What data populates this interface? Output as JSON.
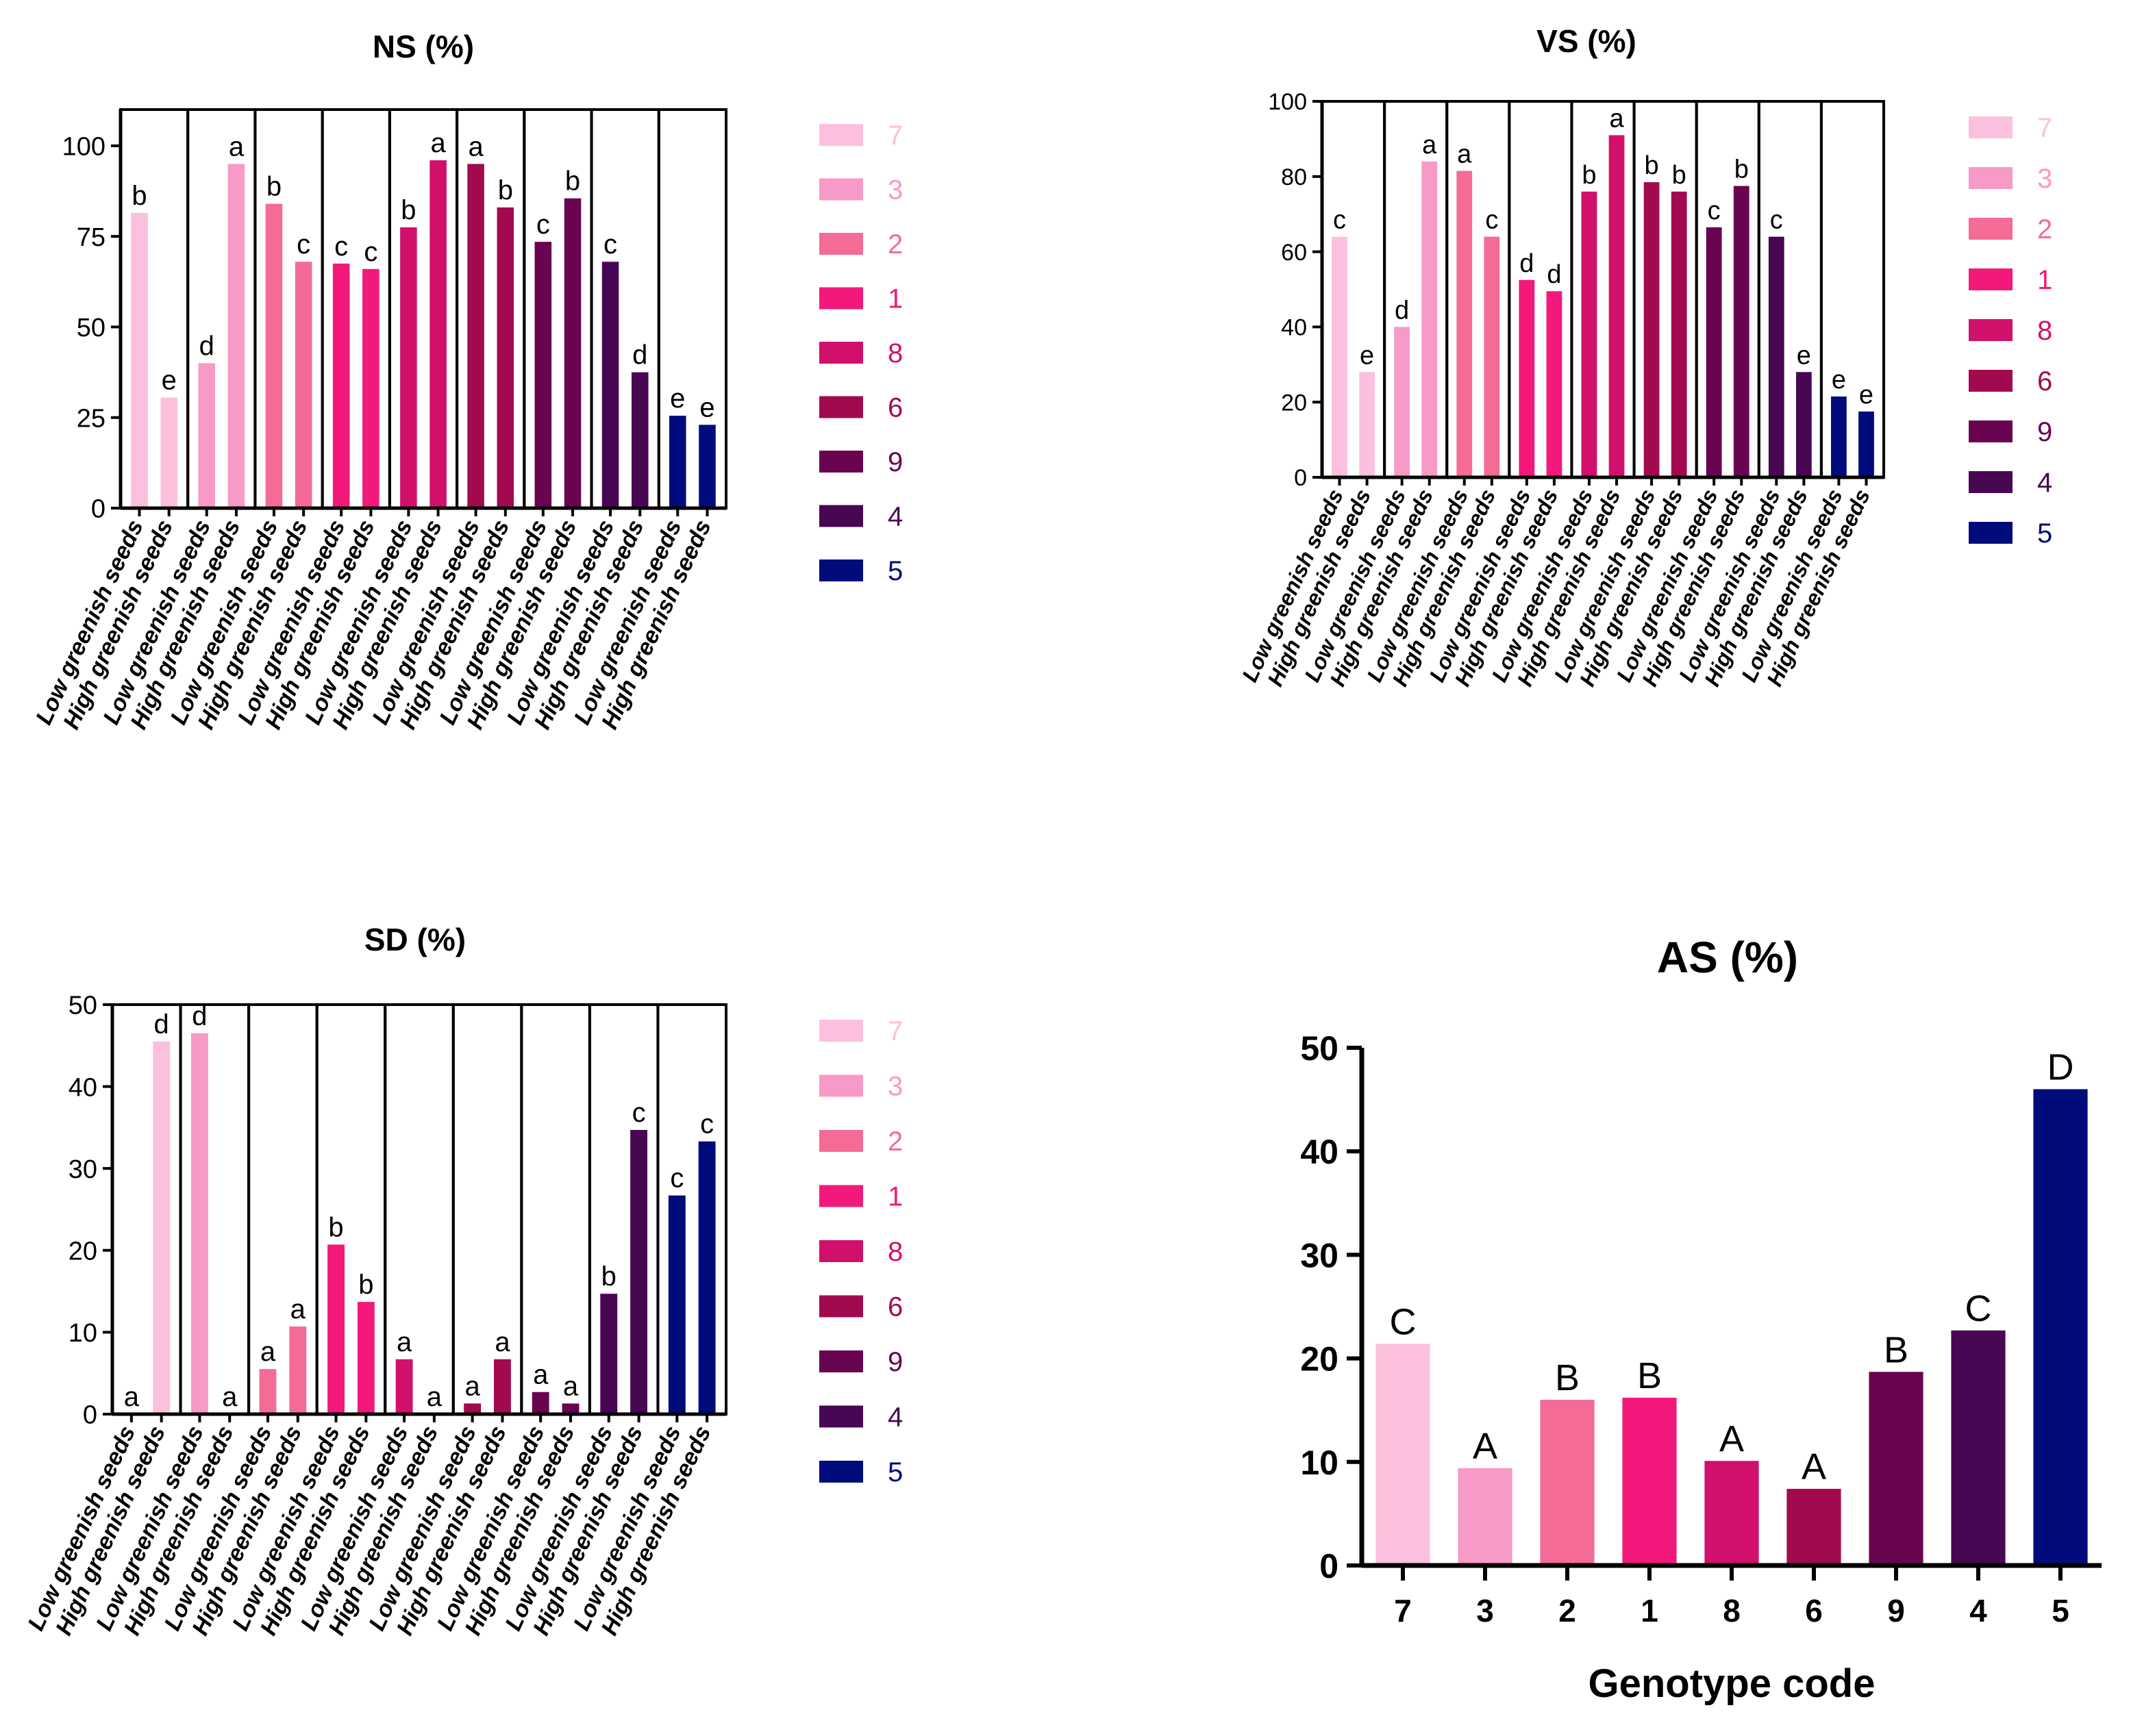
{
  "legend_genotypes": [
    "7",
    "3",
    "2",
    "1",
    "8",
    "6",
    "9",
    "4",
    "5"
  ],
  "palette": {
    "7": "#fbc0dd",
    "3": "#f79ac7",
    "2": "#f46b96",
    "1": "#f2197b",
    "8": "#d1106b",
    "6": "#a20a50",
    "9": "#690550",
    "4": "#480752",
    "5": "#010c7c"
  },
  "category_labels": [
    "Low greenish seeds",
    "High greenish seeds"
  ],
  "chart_data": [
    {
      "id": "ns",
      "type": "bar",
      "title": "NS (%)",
      "ylim": [
        0,
        110
      ],
      "yticks": [
        0,
        25,
        50,
        75,
        100
      ],
      "groups": [
        {
          "genotype": "7",
          "values": [
            81.5,
            30.5
          ],
          "letters": [
            "b",
            "e"
          ]
        },
        {
          "genotype": "3",
          "values": [
            40,
            95
          ],
          "letters": [
            "d",
            "a"
          ]
        },
        {
          "genotype": "2",
          "values": [
            84,
            68
          ],
          "letters": [
            "b",
            "c"
          ]
        },
        {
          "genotype": "1",
          "values": [
            67.5,
            66
          ],
          "letters": [
            "c",
            "c"
          ]
        },
        {
          "genotype": "8",
          "values": [
            77.5,
            96
          ],
          "letters": [
            "b",
            "a"
          ]
        },
        {
          "genotype": "6",
          "values": [
            95,
            83
          ],
          "letters": [
            "a",
            "b"
          ]
        },
        {
          "genotype": "9",
          "values": [
            73.5,
            85.5
          ],
          "letters": [
            "c",
            "b"
          ]
        },
        {
          "genotype": "4",
          "values": [
            68,
            37.5
          ],
          "letters": [
            "c",
            "d"
          ]
        },
        {
          "genotype": "5",
          "values": [
            25.5,
            23
          ],
          "letters": [
            "e",
            "e"
          ]
        }
      ]
    },
    {
      "id": "vs",
      "type": "bar",
      "title": "VS (%)",
      "ylim": [
        0,
        100
      ],
      "yticks": [
        0,
        20,
        40,
        60,
        80,
        100
      ],
      "groups": [
        {
          "genotype": "7",
          "values": [
            64,
            28
          ],
          "letters": [
            "c",
            "e"
          ]
        },
        {
          "genotype": "3",
          "values": [
            40,
            84
          ],
          "letters": [
            "d",
            "a"
          ]
        },
        {
          "genotype": "2",
          "values": [
            81.5,
            64
          ],
          "letters": [
            "a",
            "c"
          ]
        },
        {
          "genotype": "1",
          "values": [
            52.5,
            49.5
          ],
          "letters": [
            "d",
            "d"
          ]
        },
        {
          "genotype": "8",
          "values": [
            76,
            91
          ],
          "letters": [
            "b",
            "a"
          ]
        },
        {
          "genotype": "6",
          "values": [
            78.5,
            76
          ],
          "letters": [
            "b",
            "b"
          ]
        },
        {
          "genotype": "9",
          "values": [
            66.5,
            77.5
          ],
          "letters": [
            "c",
            "b"
          ]
        },
        {
          "genotype": "4",
          "values": [
            64,
            28
          ],
          "letters": [
            "c",
            "e"
          ]
        },
        {
          "genotype": "5",
          "values": [
            21.5,
            17.5
          ],
          "letters": [
            "e",
            "e"
          ]
        }
      ]
    },
    {
      "id": "sd",
      "type": "bar",
      "title": "SD (%)",
      "ylim": [
        0,
        50
      ],
      "yticks": [
        0,
        10,
        20,
        30,
        40,
        50
      ],
      "groups": [
        {
          "genotype": "7",
          "values": [
            0,
            45.5
          ],
          "letters": [
            "a",
            "d"
          ]
        },
        {
          "genotype": "3",
          "values": [
            46.5,
            0
          ],
          "letters": [
            "d",
            "a"
          ]
        },
        {
          "genotype": "2",
          "values": [
            5.5,
            10.7
          ],
          "letters": [
            "a",
            "a"
          ]
        },
        {
          "genotype": "1",
          "values": [
            20.7,
            13.7
          ],
          "letters": [
            "b",
            "b"
          ]
        },
        {
          "genotype": "8",
          "values": [
            6.7,
            0
          ],
          "letters": [
            "a",
            "a"
          ]
        },
        {
          "genotype": "6",
          "values": [
            1.3,
            6.7
          ],
          "letters": [
            "a",
            "a"
          ]
        },
        {
          "genotype": "9",
          "values": [
            2.7,
            1.3
          ],
          "letters": [
            "a",
            "a"
          ]
        },
        {
          "genotype": "4",
          "values": [
            14.7,
            34.7
          ],
          "letters": [
            "b",
            "c"
          ]
        },
        {
          "genotype": "5",
          "values": [
            26.7,
            33.3
          ],
          "letters": [
            "c",
            "c"
          ]
        }
      ]
    },
    {
      "id": "as",
      "type": "bar",
      "title": "AS (%)",
      "xlabel": "Genotype code",
      "ylim": [
        0,
        50
      ],
      "yticks": [
        0,
        10,
        20,
        30,
        40,
        50
      ],
      "categories": [
        "7",
        "3",
        "2",
        "1",
        "8",
        "6",
        "9",
        "4",
        "5"
      ],
      "values": [
        21.4,
        9.4,
        16,
        16.2,
        10.1,
        7.4,
        18.7,
        22.7,
        46
      ],
      "letters": [
        "C",
        "A",
        "B",
        "B",
        "A",
        "A",
        "B",
        "C",
        "D"
      ]
    }
  ]
}
